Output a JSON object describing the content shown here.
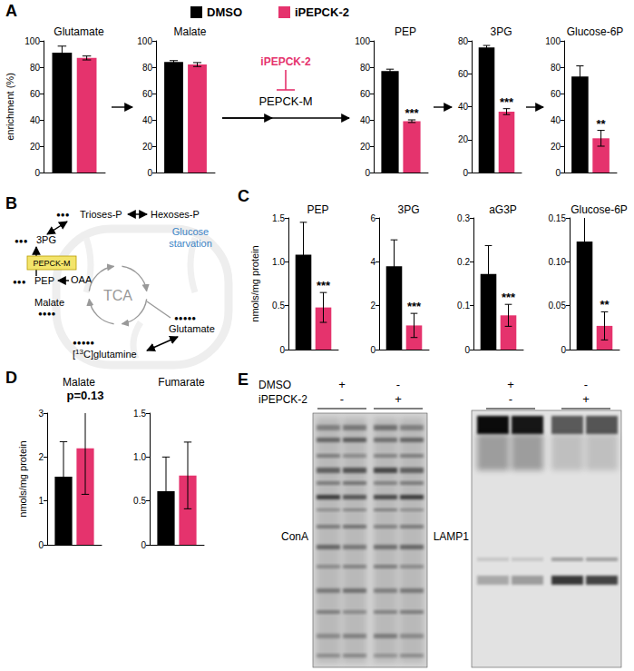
{
  "panel_labels": [
    "A",
    "B",
    "C",
    "D",
    "E"
  ],
  "chart_data": [
    {
      "type": "bar",
      "title": "Glutamate",
      "ylabel": "enrichment (%)",
      "categories": [
        null
      ],
      "ylim": [
        0,
        100
      ],
      "yticks": [
        0,
        20,
        40,
        60,
        80,
        100
      ],
      "series": [
        {
          "name": "DMSO",
          "color": "#000000",
          "values": [
            91
          ],
          "errors": [
            5
          ]
        },
        {
          "name": "iPEPCK-2",
          "color": "#e5336d",
          "values": [
            87
          ],
          "errors": [
            1.5
          ]
        }
      ]
    },
    {
      "type": "bar",
      "title": "Malate",
      "categories": [
        null
      ],
      "ylim": [
        0,
        100
      ],
      "yticks": [
        0,
        20,
        40,
        60,
        80,
        100
      ],
      "series": [
        {
          "name": "DMSO",
          "color": "#000000",
          "values": [
            84
          ],
          "errors": [
            1
          ]
        },
        {
          "name": "iPEPCK-2",
          "color": "#e5336d",
          "values": [
            82
          ],
          "errors": [
            1.5
          ]
        }
      ]
    },
    {
      "type": "bar",
      "title": "PEP",
      "categories": [
        null
      ],
      "ylim": [
        0,
        100
      ],
      "yticks": [
        0,
        20,
        40,
        60,
        80,
        100
      ],
      "annotation": "***",
      "series": [
        {
          "name": "DMSO",
          "color": "#000000",
          "values": [
            77
          ],
          "errors": [
            1.5
          ]
        },
        {
          "name": "iPEPCK-2",
          "color": "#e5336d",
          "values": [
            39
          ],
          "errors": [
            1
          ]
        }
      ]
    },
    {
      "type": "bar",
      "title": "3PG",
      "categories": [
        null
      ],
      "ylim": [
        0,
        80
      ],
      "yticks": [
        0,
        20,
        40,
        60,
        80
      ],
      "annotation": "***",
      "series": [
        {
          "name": "DMSO",
          "color": "#000000",
          "values": [
            76
          ],
          "errors": [
            1.2
          ]
        },
        {
          "name": "iPEPCK-2",
          "color": "#e5336d",
          "values": [
            37
          ],
          "errors": [
            1.8
          ]
        }
      ]
    },
    {
      "type": "bar",
      "title": "Glucose-6P",
      "categories": [
        null
      ],
      "ylim": [
        0,
        100
      ],
      "yticks": [
        0,
        20,
        40,
        60,
        80,
        100
      ],
      "annotation": "**",
      "series": [
        {
          "name": "DMSO",
          "color": "#000000",
          "values": [
            73
          ],
          "errors": [
            8
          ]
        },
        {
          "name": "iPEPCK-2",
          "color": "#e5336d",
          "values": [
            26
          ],
          "errors": [
            6
          ]
        }
      ]
    },
    {
      "type": "bar",
      "title": "PEP",
      "ylabel": "nmols/mg protein",
      "categories": [
        null
      ],
      "ylim": [
        0,
        1.5
      ],
      "yticks": [
        0,
        0.5,
        {
          "value": 1,
          "label": "1.0"
        },
        1.5
      ],
      "annotation": "***",
      "series": [
        {
          "name": "DMSO",
          "color": "#000000",
          "values": [
            1.08
          ],
          "errors": [
            0.37
          ]
        },
        {
          "name": "iPEPCK-2",
          "color": "#e5336d",
          "values": [
            0.48
          ],
          "errors": [
            0.17
          ]
        }
      ]
    },
    {
      "type": "bar",
      "title": "3PG",
      "categories": [
        null
      ],
      "ylim": [
        0,
        6
      ],
      "yticks": [
        0,
        2,
        4,
        6
      ],
      "annotation": "***",
      "series": [
        {
          "name": "DMSO",
          "color": "#000000",
          "values": [
            3.8
          ],
          "errors": [
            1.2
          ]
        },
        {
          "name": "iPEPCK-2",
          "color": "#e5336d",
          "values": [
            1.1
          ],
          "errors": [
            0.55
          ]
        }
      ]
    },
    {
      "type": "bar",
      "title": "aG3P",
      "categories": [
        null
      ],
      "ylim": [
        0,
        0.3
      ],
      "yticks": [
        0,
        0.1,
        0.2,
        0.3
      ],
      "annotation": "***",
      "series": [
        {
          "name": "DMSO",
          "color": "#000000",
          "values": [
            0.172
          ],
          "errors": [
            0.065
          ]
        },
        {
          "name": "iPEPCK-2",
          "color": "#e5336d",
          "values": [
            0.078
          ],
          "errors": [
            0.025
          ]
        }
      ]
    },
    {
      "type": "bar",
      "title": "Glucose-6P",
      "categories": [
        null
      ],
      "ylim": [
        0,
        0.15
      ],
      "yticks": [
        0,
        0.05,
        {
          "value": 0.1,
          "label": "0.10"
        },
        0.15
      ],
      "annotation": "**",
      "series": [
        {
          "name": "DMSO",
          "color": "#000000",
          "values": [
            0.123
          ],
          "errors": [
            0.032
          ]
        },
        {
          "name": "iPEPCK-2",
          "color": "#e5336d",
          "values": [
            0.027
          ],
          "errors": [
            0.016
          ]
        }
      ]
    },
    {
      "type": "bar",
      "title": "Malate",
      "ylabel": "nmols/mg protein",
      "categories": [
        null
      ],
      "ylim": [
        0,
        3
      ],
      "yticks": [
        0,
        1,
        2,
        3
      ],
      "annotation": "p=0.13",
      "series": [
        {
          "name": "DMSO",
          "color": "#000000",
          "values": [
            1.55
          ],
          "errors": [
            0.8
          ]
        },
        {
          "name": "iPEPCK-2",
          "color": "#e5336d",
          "values": [
            2.2
          ],
          "errors": [
            1.05
          ]
        }
      ]
    },
    {
      "type": "bar",
      "title": "Fumarate",
      "categories": [
        null
      ],
      "ylim": [
        0,
        1.5
      ],
      "yticks": [
        0,
        0.5,
        {
          "value": 1,
          "label": "1.0"
        },
        1.5
      ],
      "series": [
        {
          "name": "DMSO",
          "color": "#000000",
          "values": [
            0.61
          ],
          "errors": [
            0.39
          ]
        },
        {
          "name": "iPEPCK-2",
          "color": "#e5336d",
          "values": [
            0.79
          ],
          "errors": [
            0.38
          ]
        }
      ]
    }
  ],
  "pathway_a": {
    "inhibitor": "iPEPCK-2",
    "color": "#e5336d",
    "enzyme": "PEPCK-M"
  },
  "diagram_b": {
    "condition": {
      "lines": [
        "Glucose",
        "starvation"
      ],
      "color": "#3d85c6"
    },
    "cycle": "TCA",
    "enzyme": "PEPCK-M",
    "nodes": {
      "trioses": {
        "label": "Trioses-P",
        "dots": "●●●"
      },
      "hexoses": {
        "label": "Hexoses-P"
      },
      "pg3": {
        "label": "3PG",
        "dots": "●●●"
      },
      "pep": {
        "label": "PEP",
        "dots": "●●●"
      },
      "oaa": {
        "label": "OAA"
      },
      "malate": {
        "label": "Malate",
        "dots": "●●●●"
      },
      "glutamate": {
        "label": "Glutamate",
        "dots": "●●●●●"
      }
    },
    "tracer": {
      "pre": "[",
      "sup": "13",
      "post": "C]glutamine",
      "dots": "●●●●●"
    }
  },
  "blots": {
    "treatments": [
      {
        "name": "DMSO",
        "signs": [
          "+",
          "-"
        ]
      },
      {
        "name": "iPEPCK-2",
        "signs": [
          "-",
          "+"
        ]
      }
    ],
    "stains": [
      "ConA",
      "LAMP1"
    ]
  }
}
